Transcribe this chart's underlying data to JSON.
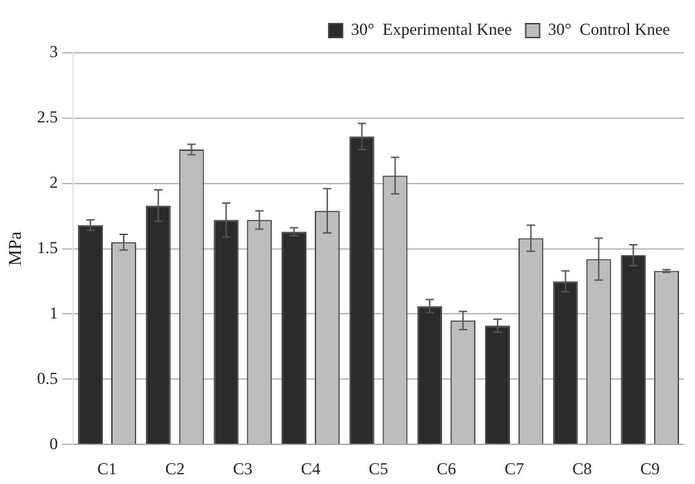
{
  "chart_data": {
    "type": "bar",
    "ylabel": "MPa",
    "categories": [
      "C1",
      "C2",
      "C3",
      "C4",
      "C5",
      "C6",
      "C7",
      "C8",
      "C9"
    ],
    "series": [
      {
        "name": "30°  Experimental Knee",
        "color": "#2b2b2b",
        "values": [
          1.68,
          1.83,
          1.72,
          1.63,
          2.36,
          1.06,
          0.91,
          1.25,
          1.45
        ],
        "errors": [
          0.04,
          0.12,
          0.13,
          0.03,
          0.1,
          0.05,
          0.05,
          0.08,
          0.08
        ]
      },
      {
        "name": "30°  Control Knee",
        "color": "#bdbdbd",
        "values": [
          1.55,
          2.26,
          1.72,
          1.79,
          2.06,
          0.95,
          1.58,
          1.42,
          1.33
        ],
        "errors": [
          0.06,
          0.04,
          0.07,
          0.17,
          0.14,
          0.07,
          0.1,
          0.16,
          0.01
        ]
      }
    ],
    "ylim": [
      0,
      3
    ],
    "yticks": [
      0,
      0.5,
      1,
      1.5,
      2,
      2.5,
      3
    ],
    "grid": "y",
    "legend": "top right"
  }
}
